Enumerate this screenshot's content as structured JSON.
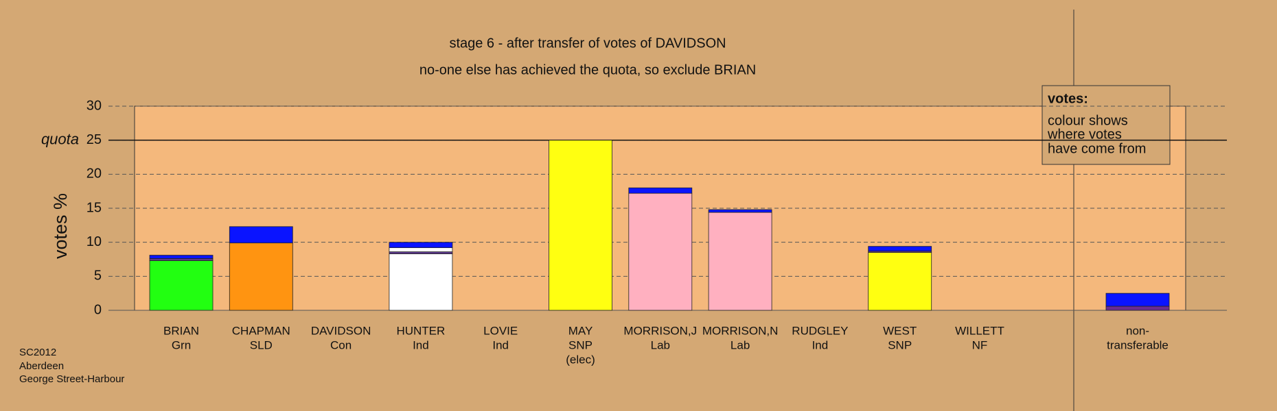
{
  "chart_data": {
    "type": "stacked_bar",
    "title": "stage 6 - after transfer of votes of DAVIDSON",
    "subtitle": "no-one else has achieved the quota, so exclude BRIAN",
    "y_label": "votes %",
    "quota": {
      "value": 25,
      "label": "quota"
    },
    "categories": [
      [
        "BRIAN",
        "Grn"
      ],
      [
        "CHAPMAN",
        "SLD"
      ],
      [
        "DAVIDSON",
        "Con"
      ],
      [
        "HUNTER",
        "Ind"
      ],
      [
        "LOVIE",
        "Ind"
      ],
      [
        "MAY",
        "SNP",
        "(elec)"
      ],
      [
        "MORRISON,J",
        "Lab"
      ],
      [
        "MORRISON,N",
        "Lab"
      ],
      [
        "RUDGLEY",
        "Ind"
      ],
      [
        "WEST",
        "SNP"
      ],
      [
        "WILLETT",
        "NF"
      ],
      [
        "non-",
        "transferable"
      ]
    ],
    "series": [
      {
        "colors": [
          "#22ff11",
          "#ff9411",
          "#ffffff",
          "#ffffff",
          "#ffffff",
          "#ffff11",
          "#ffb0c0",
          "#ffb0c0",
          "#ffffff",
          "#ffff11",
          "#ffffff",
          "#6a2c91"
        ],
        "values": [
          7.3,
          9.9,
          0,
          8.3,
          0,
          25,
          17.2,
          14.4,
          0,
          8.5,
          0,
          0.6
        ]
      },
      {
        "color": "#5c3a8c",
        "values": [
          0.3,
          0,
          0,
          0.3,
          0,
          0,
          0,
          0,
          0,
          0.2,
          0,
          0
        ]
      },
      {
        "color": "#ffffff",
        "values": [
          0,
          0,
          0,
          0.6,
          0,
          0,
          0,
          0,
          0,
          0,
          0,
          0
        ]
      },
      {
        "color": "#0a14ff",
        "values": [
          0.5,
          2.4,
          0,
          0.8,
          0,
          0,
          0.8,
          0.4,
          0,
          0.7,
          0,
          1.9
        ]
      }
    ],
    "ylim": [
      0,
      30
    ],
    "yticks": [
      0,
      5,
      10,
      15,
      20,
      25,
      30
    ],
    "grid": true,
    "legend": {
      "title": "votes:",
      "lines": [
        "colour shows",
        "where votes",
        "have come from"
      ]
    },
    "footer": [
      "SC2012",
      "Aberdeen",
      "George Street-Harbour"
    ]
  }
}
